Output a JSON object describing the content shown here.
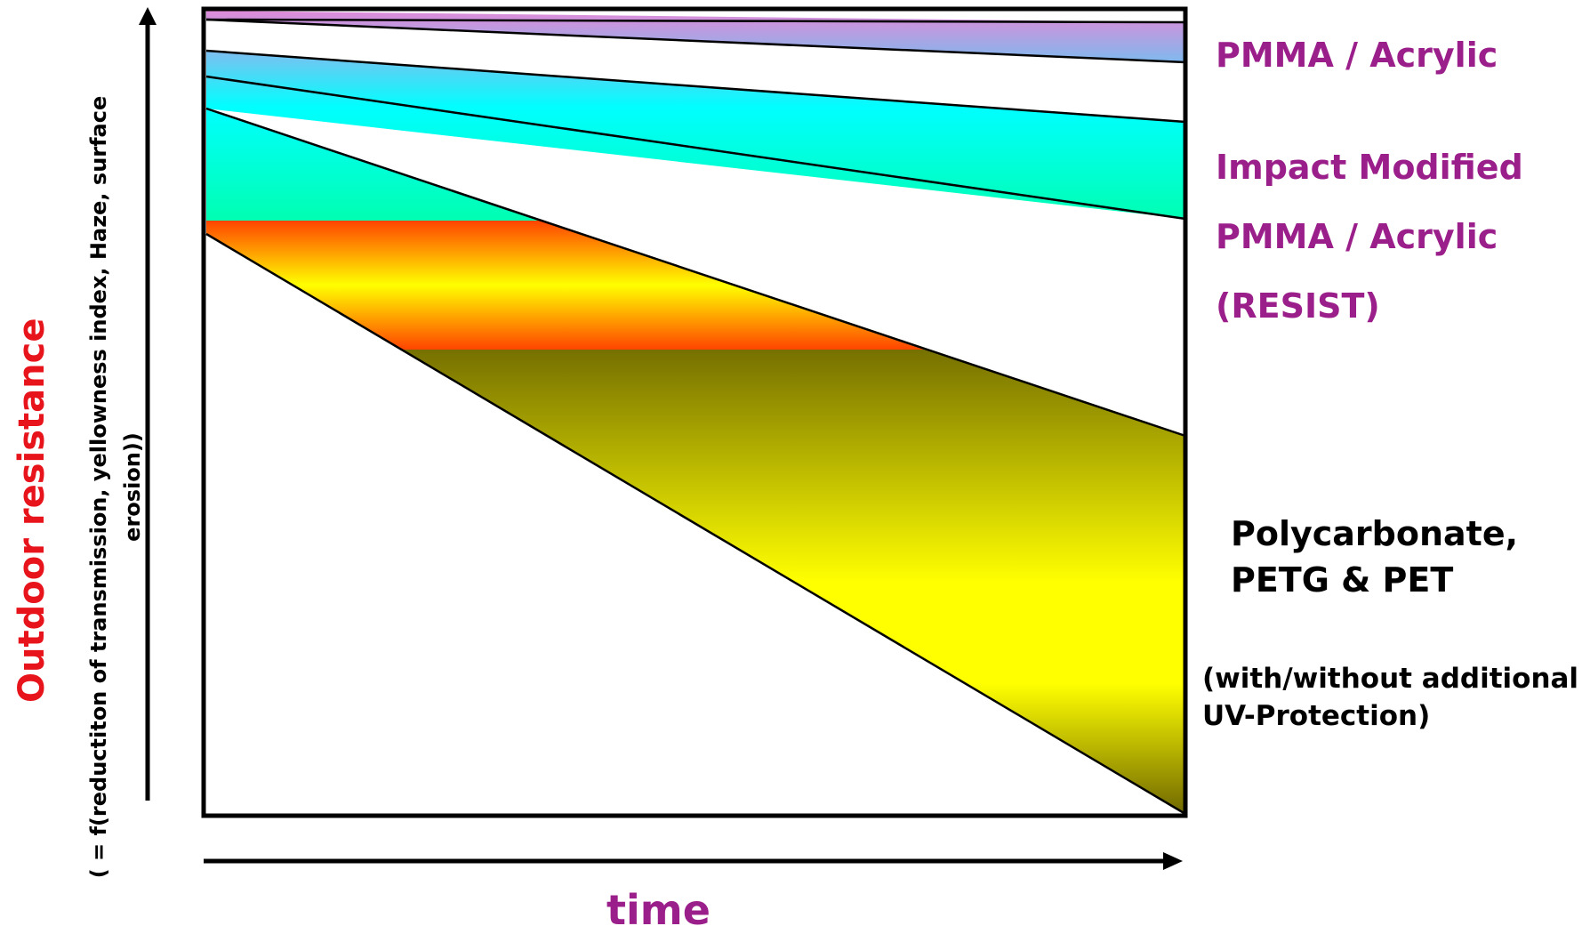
{
  "y_axis": {
    "title": "Outdoor resistance",
    "subtitle": "( = f(reductiton of transmission, yellowness index, Haze, surface erosion))"
  },
  "x_axis": {
    "title": "time"
  },
  "materials": {
    "pmma": "PMMA / Acrylic",
    "impact_modified": [
      "Impact Modified",
      "PMMA / Acrylic",
      "(RESIST)"
    ],
    "polycarbonate": [
      "Polycarbonate,",
      "PETG & PET"
    ],
    "uv_note": [
      "(with/without additional",
      "UV-Protection)"
    ]
  },
  "colors": {
    "label_purple": "#9b1f8a",
    "axis_title_red": "#e8141b",
    "pmma_band": [
      "#d98fd6",
      "#7fb7ee"
    ],
    "impact_band": [
      "#7ec6f2",
      "#00ffff",
      "#00ffb8"
    ],
    "pc_band": [
      "#ff4a00",
      "#ffff00",
      "#787000"
    ]
  }
}
